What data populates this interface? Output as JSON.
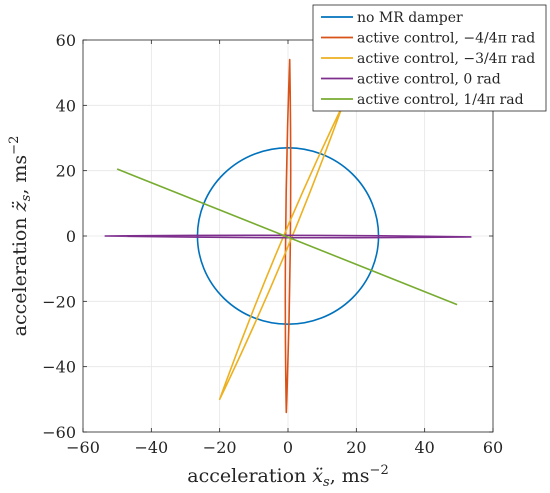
{
  "chart_data": {
    "type": "line",
    "xlabel": "acceleration ẍ_s, ms^−2",
    "ylabel": "acceleration z̈_s, ms^−2",
    "xlabel_parts": {
      "main": "acceleration ",
      "var": "ẍ",
      "sub": "s",
      "unit": ", ms",
      "sup": "−2"
    },
    "ylabel_parts": {
      "main": "acceleration ",
      "var": "z̈",
      "sub": "s",
      "unit": ", ms",
      "sup": "−2"
    },
    "xlim": [
      -60,
      60
    ],
    "ylim": [
      -60,
      60
    ],
    "xticks": [
      -60,
      -40,
      -20,
      0,
      20,
      40,
      60
    ],
    "yticks": [
      -60,
      -40,
      -20,
      0,
      20,
      40,
      60
    ],
    "xtick_labels": [
      "−60",
      "−40",
      "−20",
      "0",
      "20",
      "40",
      "60"
    ],
    "ytick_labels": [
      "−60",
      "−40",
      "−20",
      "0",
      "20",
      "40",
      "60"
    ],
    "grid": true,
    "legend_position": "top-right",
    "series": [
      {
        "name": "no MR damper",
        "color": "#0072BD",
        "shape": "ellipse",
        "center": [
          0,
          0
        ],
        "radii": [
          26.5,
          27
        ]
      },
      {
        "name": "active control, −4/4π rad",
        "color": "#D95319",
        "shape": "thin-loop",
        "points": [
          [
            0.5,
            54
          ],
          [
            -0.5,
            -54
          ]
        ],
        "half_width": 0.7
      },
      {
        "name": "active control, −3/4π rad",
        "color": "#EDB120",
        "shape": "thin-loop",
        "points": [
          [
            16,
            40
          ],
          [
            -20,
            -50
          ]
        ],
        "half_width": 1.2
      },
      {
        "name": "active control, 0 rad",
        "color": "#7E2F8E",
        "shape": "thin-loop",
        "points": [
          [
            -53.5,
            0
          ],
          [
            53.5,
            -0.3
          ]
        ],
        "half_width": 0.35
      },
      {
        "name": "active control, 1/4π rad",
        "color": "#77AC30",
        "shape": "segment",
        "points": [
          [
            -50,
            20.5
          ],
          [
            49.5,
            -21
          ]
        ]
      }
    ]
  }
}
